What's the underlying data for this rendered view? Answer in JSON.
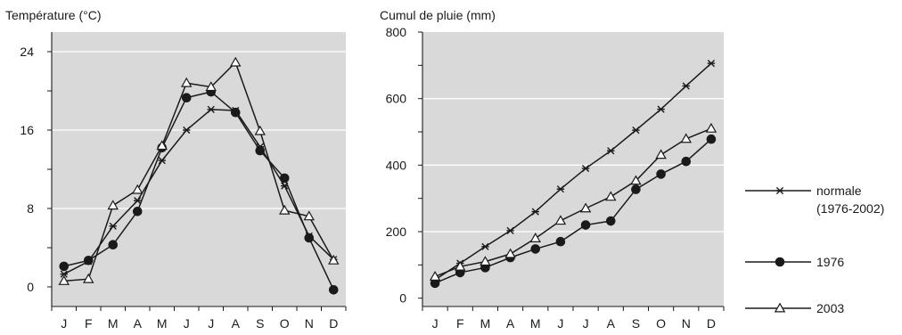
{
  "colors": {
    "plot_background": "#d9d9d9",
    "grid": "#ffffff",
    "line": "#1a1a1a"
  },
  "legend": {
    "placement": "right",
    "entries": [
      {
        "series_key": "normale",
        "marker": "star",
        "lines": [
          "normale",
          "(1976-2002)"
        ]
      },
      {
        "series_key": "y1976",
        "marker": "dot",
        "lines": [
          "1976"
        ]
      },
      {
        "series_key": "y2003",
        "marker": "triangle",
        "lines": [
          "2003"
        ]
      }
    ]
  },
  "chart_data": [
    {
      "type": "line",
      "title": "",
      "ylabel": "Température (°C)",
      "xlabel": "",
      "categories": [
        "J",
        "F",
        "M",
        "A",
        "M",
        "J",
        "J",
        "A",
        "S",
        "O",
        "N",
        "D"
      ],
      "ylim": [
        -2,
        26
      ],
      "yticks": [
        0,
        8,
        16,
        24
      ],
      "grid": true,
      "series": [
        {
          "key": "normale",
          "marker": "star",
          "values": [
            1.3,
            2.6,
            6.2,
            8.8,
            12.9,
            16.0,
            18.1,
            18.0,
            14.3,
            10.3,
            5.2,
            2.8
          ]
        },
        {
          "key": "y1976",
          "marker": "dot",
          "values": [
            2.1,
            2.7,
            4.3,
            7.7,
            14.2,
            19.3,
            19.9,
            17.8,
            13.9,
            11.1,
            5.0,
            -0.3
          ]
        },
        {
          "key": "y2003",
          "marker": "triangle",
          "values": [
            0.6,
            0.8,
            8.3,
            9.9,
            14.4,
            20.8,
            20.4,
            22.9,
            15.9,
            7.8,
            7.2,
            2.7
          ]
        }
      ]
    },
    {
      "type": "line",
      "title": "",
      "ylabel": "Cumul de pluie (mm)",
      "xlabel": "",
      "categories": [
        "J",
        "F",
        "M",
        "A",
        "M",
        "J",
        "J",
        "A",
        "S",
        "O",
        "N",
        "D"
      ],
      "ylim": [
        -25,
        800
      ],
      "yticks": [
        0,
        200,
        400,
        600,
        800
      ],
      "grid": true,
      "series": [
        {
          "key": "normale",
          "marker": "star",
          "values": [
            55,
            105,
            155,
            203,
            260,
            328,
            390,
            443,
            505,
            568,
            638,
            706
          ]
        },
        {
          "key": "y1976",
          "marker": "dot",
          "values": [
            45,
            77,
            92,
            122,
            148,
            170,
            220,
            232,
            327,
            373,
            411,
            478
          ]
        },
        {
          "key": "y2003",
          "marker": "triangle",
          "values": [
            65,
            95,
            110,
            133,
            180,
            233,
            270,
            305,
            353,
            431,
            479,
            510
          ]
        }
      ]
    }
  ]
}
